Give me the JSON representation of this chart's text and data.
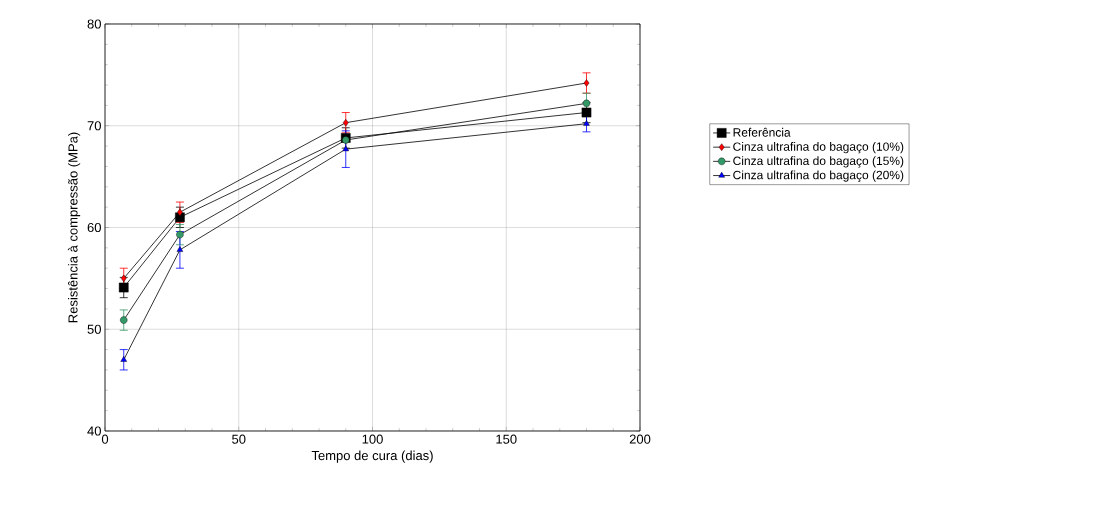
{
  "chart_data": {
    "type": "line",
    "xlabel": "Tempo de cura (dias)",
    "ylabel": "Resistência à compressão (MPa)",
    "x": [
      7,
      28,
      90,
      180
    ],
    "series": [
      {
        "name": "Referência",
        "color": "#000000",
        "marker": "square",
        "values": [
          54.1,
          61.0,
          68.8,
          71.3
        ],
        "errors": [
          1.0,
          1.0,
          1.0,
          1.0
        ]
      },
      {
        "name": "Cinza ultrafina do bagaço (10%)",
        "color": "#ff0000",
        "marker": "diamond",
        "values": [
          55.0,
          61.5,
          70.3,
          74.2
        ],
        "errors": [
          1.0,
          1.0,
          1.0,
          1.0
        ]
      },
      {
        "name": "Cinza ultrafina do bagaço (15%)",
        "color": "#339966",
        "marker": "circle",
        "values": [
          50.9,
          59.3,
          68.6,
          72.2
        ],
        "errors": [
          1.0,
          1.0,
          null,
          1.0
        ]
      },
      {
        "name": "Cinza ultrafina do bagaço (20%)",
        "color": "#0000ff",
        "marker": "triangle",
        "values": [
          47.0,
          57.8,
          67.7,
          70.2
        ],
        "errors": [
          1.0,
          1.8,
          1.8,
          0.8
        ]
      }
    ],
    "xlim": [
      0,
      200
    ],
    "ylim": [
      40,
      80
    ],
    "xticks": [
      0,
      50,
      100,
      150,
      200
    ],
    "yticks": [
      40,
      50,
      60,
      70,
      80
    ],
    "grid": true,
    "legend": "right"
  }
}
